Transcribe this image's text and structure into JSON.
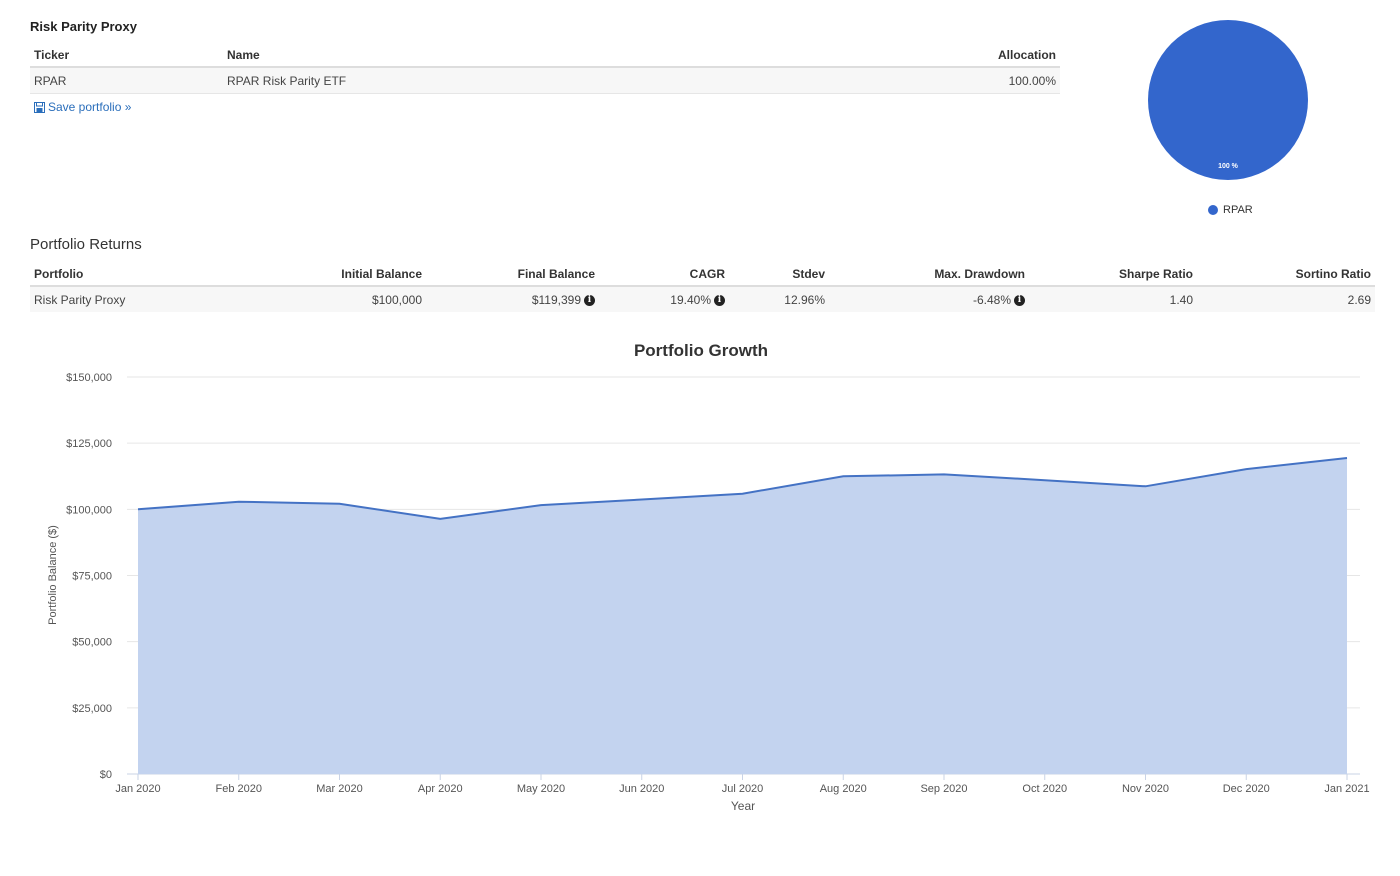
{
  "portfolio": {
    "title": "Risk Parity Proxy",
    "columns": [
      "Ticker",
      "Name",
      "Allocation"
    ],
    "rows": [
      {
        "ticker": "RPAR",
        "name": "RPAR Risk Parity ETF",
        "allocation": "100.00%"
      }
    ],
    "save_link": "Save portfolio »"
  },
  "pie": {
    "slice_label": "100 %",
    "legend": "RPAR",
    "color": "#3366cc"
  },
  "returns": {
    "title": "Portfolio Returns",
    "columns": [
      "Portfolio",
      "Initial Balance",
      "Final Balance",
      "CAGR",
      "Stdev",
      "Max. Drawdown",
      "Sharpe Ratio",
      "Sortino Ratio"
    ],
    "row": {
      "portfolio": "Risk Parity Proxy",
      "initial_balance": "$100,000",
      "final_balance": "$119,399",
      "cagr": "19.40%",
      "stdev": "12.96%",
      "max_drawdown": "-6.48%",
      "sharpe": "1.40",
      "sortino": "2.69"
    }
  },
  "chart_data": {
    "type": "area",
    "title": "Portfolio Growth",
    "xlabel": "Year",
    "ylabel": "Portfolio Balance ($)",
    "ylim": [
      0,
      150000
    ],
    "yticks": [
      "$0",
      "$25,000",
      "$50,000",
      "$75,000",
      "$100,000",
      "$125,000",
      "$150,000"
    ],
    "categories": [
      "Jan 2020",
      "Feb 2020",
      "Mar 2020",
      "Apr 2020",
      "May 2020",
      "Jun 2020",
      "Jul 2020",
      "Aug 2020",
      "Sep 2020",
      "Oct 2020",
      "Nov 2020",
      "Dec 2020",
      "Jan 2021"
    ],
    "series": [
      {
        "values": [
          100000,
          102900,
          102100,
          96400,
          101600,
          103700,
          105900,
          112500,
          113200,
          111000,
          108700,
          115200,
          119399
        ]
      }
    ],
    "line_color": "#4472c4",
    "fill_color": "#c3d3ef",
    "grid": true
  }
}
